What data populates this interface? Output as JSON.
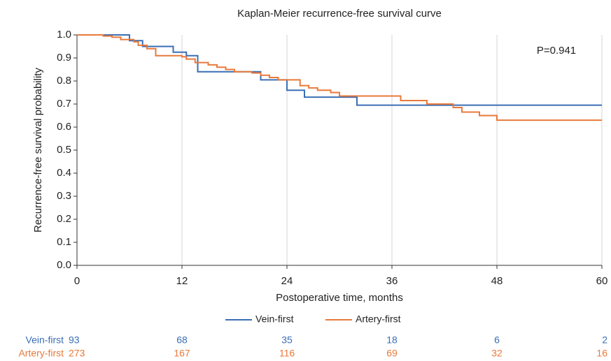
{
  "chart_data": {
    "type": "step",
    "title": "Kaplan-Meier recurrence-free survival curve",
    "xlabel": "Postoperative time, months",
    "ylabel": "Recurrence-free survival probability",
    "annotation": "P=0.941",
    "xlim": [
      0,
      60
    ],
    "xticks": [
      0,
      12,
      24,
      36,
      48,
      60
    ],
    "ylim": [
      0,
      1
    ],
    "yticks": [
      {
        "value": 0,
        "label": "0.0"
      },
      0.1,
      0.2,
      0.3,
      0.4,
      0.5,
      0.6,
      0.7,
      0.8,
      0.9,
      {
        "value": 1,
        "label": "1.0"
      }
    ],
    "grid": true,
    "legend": "bottom",
    "series": [
      {
        "name": "Vein-first",
        "color": "#3a6eb5",
        "x": [
          0,
          6,
          7.5,
          11,
          12.5,
          13.8,
          21,
          24,
          26,
          32,
          60
        ],
        "values": [
          1,
          0.975,
          0.95,
          0.925,
          0.91,
          0.84,
          0.805,
          0.76,
          0.73,
          0.695,
          0.695
        ]
      },
      {
        "name": "Artery-first",
        "color": "#e8793a",
        "x": [
          0,
          3,
          4,
          5,
          6.5,
          7,
          8,
          9,
          12,
          12.5,
          13.5,
          15,
          16,
          17,
          18,
          20,
          21,
          22,
          23,
          25.5,
          26.5,
          27.5,
          29,
          30,
          37,
          40,
          43,
          44,
          46,
          48,
          60
        ],
        "values": [
          1,
          0.995,
          0.99,
          0.98,
          0.97,
          0.955,
          0.94,
          0.91,
          0.905,
          0.895,
          0.88,
          0.87,
          0.86,
          0.85,
          0.84,
          0.835,
          0.825,
          0.815,
          0.805,
          0.78,
          0.77,
          0.76,
          0.75,
          0.735,
          0.715,
          0.7,
          0.685,
          0.665,
          0.65,
          0.63,
          0.63
        ]
      }
    ],
    "risk_table": [
      {
        "name": "Vein-first",
        "color": "#3a6eb5",
        "values": [
          93,
          68,
          35,
          18,
          6,
          2
        ]
      },
      {
        "name": "Artery-first",
        "color": "#e8793a",
        "values": [
          273,
          167,
          116,
          69,
          32,
          16
        ]
      }
    ]
  }
}
